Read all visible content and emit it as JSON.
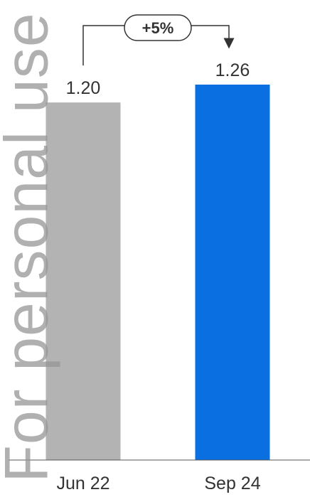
{
  "watermark": "For personal use",
  "colors": {
    "bar_previous": "#b3b3b3",
    "bar_current": "#0a6fe0",
    "text": "#333333",
    "axis": "#555555"
  },
  "chart_data": {
    "type": "bar",
    "categories": [
      "Jun 22",
      "Sep 24"
    ],
    "values": [
      1.2,
      1.26
    ],
    "value_labels": [
      "1.20",
      "1.26"
    ],
    "ylim": [
      0,
      1.26
    ],
    "title": "",
    "xlabel": "",
    "ylabel": "",
    "annotation": {
      "label": "+5%",
      "from": "Jun 22",
      "to": "Sep 24"
    }
  }
}
